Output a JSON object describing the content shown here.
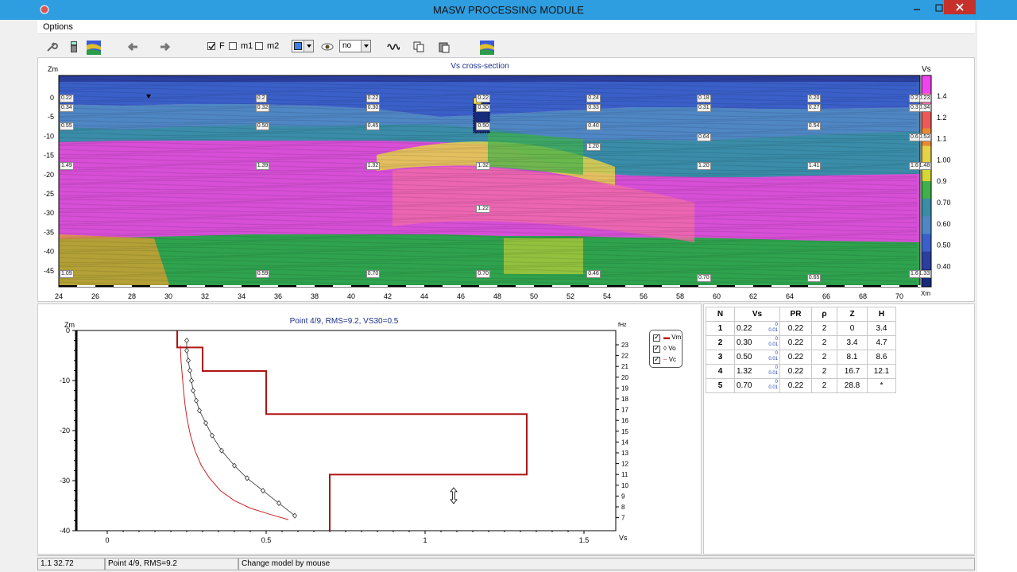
{
  "window": {
    "title": "MASW PROCESSING MODULE"
  },
  "menu": {
    "options": "Options"
  },
  "toolbar": {
    "check_f": "F",
    "check_m1": "m1",
    "check_m2": "m2",
    "view_select": "no"
  },
  "cross_section": {
    "title": "Vs cross-section",
    "y_label": "Zm",
    "x_label": "Xm",
    "colorbar_label": "Vs",
    "colorbar_ticks": [
      "1.4",
      "1.2",
      "1.1",
      "1.00",
      "0.9",
      "0.70",
      "0.60",
      "0.50",
      "0.40"
    ],
    "y_ticks": [
      "0",
      "-5",
      "-10",
      "-15",
      "-20",
      "-25",
      "-30",
      "-35",
      "-40",
      "-45"
    ],
    "x_ticks": [
      "24",
      "26",
      "28",
      "30",
      "32",
      "34",
      "36",
      "38",
      "40",
      "42",
      "44",
      "46",
      "48",
      "50",
      "52",
      "54",
      "56",
      "58",
      "60",
      "62",
      "64",
      "66",
      "68",
      "70"
    ],
    "labels": [
      {
        "t": "0.22",
        "c": 0,
        "r": 0
      },
      {
        "t": "0.34",
        "c": 0,
        "r": 1
      },
      {
        "t": "0.55",
        "c": 0,
        "r": 2
      },
      {
        "t": "1.49",
        "c": 0,
        "r": 3
      },
      {
        "t": "1.09",
        "c": 0,
        "r": 4
      },
      {
        "t": "0.2",
        "c": 1,
        "r": 0
      },
      {
        "t": "0.32",
        "c": 1,
        "r": 1
      },
      {
        "t": "0.50",
        "c": 1,
        "r": 2
      },
      {
        "t": "1.39",
        "c": 1,
        "r": 3
      },
      {
        "t": "0.59",
        "c": 1,
        "r": 4
      },
      {
        "t": "0.22",
        "c": 2,
        "r": 0
      },
      {
        "t": "0.30",
        "c": 2,
        "r": 1
      },
      {
        "t": "0.45",
        "c": 2,
        "r": 2
      },
      {
        "t": "1.32",
        "c": 2,
        "r": 3
      },
      {
        "t": "0.70",
        "c": 2,
        "r": 4
      },
      {
        "t": "0.22",
        "c": 3,
        "r": 0
      },
      {
        "t": "0.30",
        "c": 3,
        "r": 1
      },
      {
        "t": "0.50",
        "c": 3,
        "r": 2
      },
      {
        "t": "1.32",
        "c": 3,
        "r": 3
      },
      {
        "t": "1.22",
        "c": 3,
        "r": 5
      },
      {
        "t": "0.70",
        "c": 3,
        "r": 4
      },
      {
        "t": "0.24",
        "c": 4,
        "r": 0
      },
      {
        "t": "0.33",
        "c": 4,
        "r": 1
      },
      {
        "t": "0.40",
        "c": 4,
        "r": 2
      },
      {
        "t": "1.20",
        "c": 4,
        "r": 6
      },
      {
        "t": "0.46",
        "c": 4,
        "r": 4
      },
      {
        "t": "0.18",
        "c": 5,
        "r": 0
      },
      {
        "t": "0.31",
        "c": 5,
        "r": 1
      },
      {
        "t": "0.64",
        "c": 5,
        "r": 7
      },
      {
        "t": "1.20",
        "c": 5,
        "r": 3
      },
      {
        "t": "0.70",
        "c": 5,
        "r": 8
      },
      {
        "t": "0.20",
        "c": 6,
        "r": 0
      },
      {
        "t": "0.27",
        "c": 6,
        "r": 1
      },
      {
        "t": "0.54",
        "c": 6,
        "r": 2
      },
      {
        "t": "1.41",
        "c": 6,
        "r": 3
      },
      {
        "t": "0.65",
        "c": 6,
        "r": 8
      },
      {
        "t": "0.23",
        "c": 7,
        "r": 0
      },
      {
        "t": "0.34",
        "c": 7,
        "r": 1
      },
      {
        "t": "0.53",
        "c": 7,
        "r": 7
      },
      {
        "t": "1.48",
        "c": 7,
        "r": 3
      },
      {
        "t": "1.33",
        "c": 7,
        "r": 4
      },
      {
        "t": "0.2",
        "c": 8,
        "r": 0
      },
      {
        "t": "0.3",
        "c": 8,
        "r": 1
      },
      {
        "t": "0.6",
        "c": 8,
        "r": 7
      },
      {
        "t": "1.6",
        "c": 8,
        "r": 3
      },
      {
        "t": "1.6",
        "c": 8,
        "r": 4
      }
    ]
  },
  "profile_plot": {
    "title": "Point 4/9, RMS=9.2, VS30=0.5",
    "y_label": "Zm",
    "x_label": "Vs",
    "right_label": "fHz",
    "y_ticks": [
      "0",
      "-10",
      "-20",
      "-30",
      "-40"
    ],
    "x_ticks": [
      "0",
      "0.5",
      "1",
      "1.5"
    ],
    "right_ticks": [
      "23",
      "22",
      "21",
      "20",
      "19",
      "18",
      "17",
      "16",
      "15",
      "14",
      "13",
      "12",
      "11",
      "10",
      "9",
      "8",
      "7"
    ],
    "legend": [
      "Vm",
      "Vo",
      "Vc"
    ]
  },
  "chart_data": {
    "type": "line",
    "title": "Point 4/9, RMS=9.2, VS30=0.5",
    "xlabel": "Vs",
    "ylabel": "Zm",
    "xlim": [
      -0.1,
      1.6
    ],
    "ylim": [
      -40,
      0
    ],
    "series": [
      {
        "name": "Vm",
        "x": [
          0.22,
          0.22,
          0.3,
          0.3,
          0.5,
          0.5,
          1.32,
          1.32,
          0.7,
          0.7
        ],
        "y": [
          0,
          -3.4,
          -3.4,
          -8.1,
          -8.1,
          -16.7,
          -16.7,
          -28.8,
          -28.8,
          -40
        ]
      },
      {
        "name": "Vo",
        "x": [
          0.25,
          0.25,
          0.255,
          0.26,
          0.265,
          0.27,
          0.28,
          0.29,
          0.31,
          0.33,
          0.36,
          0.4,
          0.44,
          0.49,
          0.54,
          0.59
        ],
        "y": [
          -2,
          -4,
          -6,
          -8,
          -10,
          -12,
          -14,
          -16,
          -18.5,
          -21,
          -24,
          -27,
          -29.5,
          -32,
          -34.5,
          -37
        ]
      },
      {
        "name": "Vc",
        "x": [
          0.23,
          0.232,
          0.236,
          0.24,
          0.245,
          0.252,
          0.262,
          0.276,
          0.296,
          0.322,
          0.356,
          0.4,
          0.45,
          0.51,
          0.57
        ],
        "y": [
          -3,
          -6,
          -9,
          -12,
          -15,
          -18,
          -21,
          -24,
          -27,
          -29.5,
          -32,
          -34,
          -35.5,
          -36.7,
          -37.8
        ]
      }
    ]
  },
  "params_table": {
    "headers": [
      "N",
      "Vs",
      "PR",
      "ρ",
      "Z",
      "H"
    ],
    "rows": [
      {
        "n": "1",
        "vs": "0.22",
        "err_top": "0",
        "err_bot": "0.01",
        "pr": "0.22",
        "rho": "2",
        "z": "0",
        "h": "3.4"
      },
      {
        "n": "2",
        "vs": "0.30",
        "err_top": "0",
        "err_bot": "0.01",
        "pr": "0.22",
        "rho": "2",
        "z": "3.4",
        "h": "4.7"
      },
      {
        "n": "3",
        "vs": "0.50",
        "err_top": "0",
        "err_bot": "0.01",
        "pr": "0.22",
        "rho": "2",
        "z": "8.1",
        "h": "8.6"
      },
      {
        "n": "4",
        "vs": "1.32",
        "err_top": "0",
        "err_bot": "0.01",
        "pr": "0.22",
        "rho": "2",
        "z": "16.7",
        "h": "12.1"
      },
      {
        "n": "5",
        "vs": "0.70",
        "err_top": "0",
        "err_bot": "0.01",
        "pr": "0.22",
        "rho": "2",
        "z": "28.8",
        "h": "*"
      }
    ]
  },
  "status": {
    "coords": "1.1 32.72",
    "point": "Point 4/9, RMS=9.2",
    "hint": "Change model by mouse"
  }
}
